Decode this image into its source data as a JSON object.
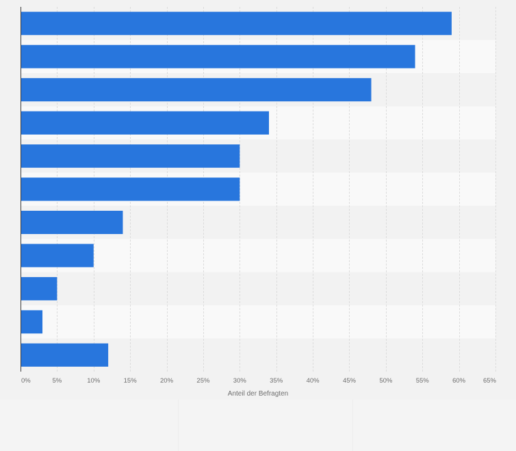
{
  "chart_data": {
    "type": "bar",
    "orientation": "horizontal",
    "values": [
      59,
      54,
      48,
      34,
      30,
      30,
      14,
      10,
      5,
      3,
      12
    ],
    "xlabel": "Anteil der Befragten",
    "ylabel": "",
    "xlim": [
      0,
      65
    ],
    "xticks": [
      0,
      5,
      10,
      15,
      20,
      25,
      30,
      35,
      40,
      45,
      50,
      55,
      60,
      65
    ],
    "xtick_labels": [
      "0%",
      "5%",
      "10%",
      "15%",
      "20%",
      "25%",
      "30%",
      "35%",
      "40%",
      "45%",
      "50%",
      "55%",
      "60%",
      "65%"
    ],
    "unit": "%",
    "grid": true,
    "alternating_row_bands": true,
    "legend": "none"
  },
  "colors": {
    "bar": "#2876dd",
    "background": "#f2f2f2",
    "band": "#f9f9f9",
    "grid": "#dcdcdc",
    "axis": "#3c3c3c",
    "text": "#6e6e6e"
  }
}
